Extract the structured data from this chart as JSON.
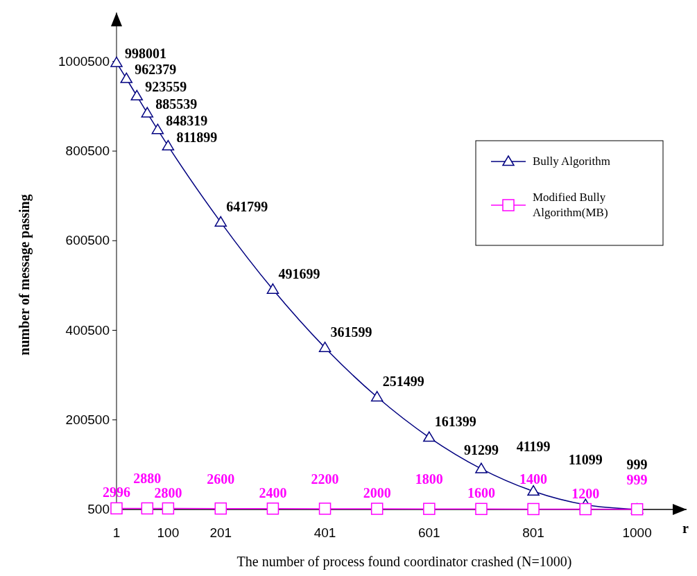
{
  "chart_data": {
    "type": "line",
    "xlabel": "The number of process found coordinator crashed (N=1000)",
    "ylabel": "number of message passing",
    "xlim": [
      1,
      1095
    ],
    "xticks": [
      1,
      100,
      201,
      401,
      601,
      801,
      1000
    ],
    "ylim": [
      500,
      1110000
    ],
    "yticks": [
      500,
      200500,
      400500,
      600500,
      800500,
      1000500
    ],
    "grid": false,
    "legend": "right",
    "data_labels": true,
    "annotations": [
      "r"
    ],
    "series": [
      {
        "name": "Bully Algorithm",
        "color": "#000080",
        "marker": "triangle",
        "x": [
          1,
          20,
          40,
          60,
          80,
          100,
          201,
          301,
          401,
          501,
          601,
          701,
          801,
          901,
          1000
        ],
        "values": [
          998001,
          962379,
          923559,
          885539,
          848319,
          811899,
          641799,
          491699,
          361599,
          251499,
          161399,
          91299,
          41199,
          11099,
          999
        ]
      },
      {
        "name": "Modified Bully Algorithm(MB)",
        "color": "#ff00ff",
        "marker": "square",
        "x": [
          1,
          60,
          100,
          201,
          301,
          401,
          501,
          601,
          701,
          801,
          901,
          1000
        ],
        "values": [
          2996,
          2880,
          2800,
          2600,
          2400,
          2200,
          2000,
          1800,
          1600,
          1400,
          1200,
          999
        ]
      }
    ]
  }
}
